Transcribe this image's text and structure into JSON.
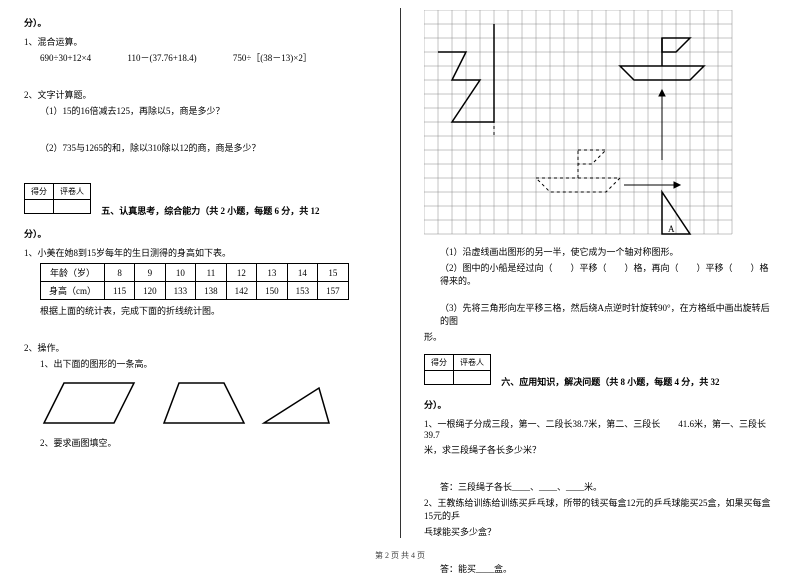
{
  "left": {
    "fen_close": "分）。",
    "q1_title": "1、混合运算。",
    "exprs": [
      "690÷30+12×4",
      "110－(37.76+18.4)",
      "750÷［(38－13)×2］"
    ],
    "q2_title": "2、文字计算题。",
    "q2_a": "（1）15的16倍减去125，再除以5，商是多少？",
    "q2_b": "（2）735与1265的和，除以310除以12的商，商是多少？",
    "score_labels": [
      "得分",
      "评卷人"
    ],
    "section5": "五、认真思考，综合能力（共 2 小题，每题 6 分，共 12",
    "q5_1": "1、小美在她8到15岁每年的生日测得的身高如下表。",
    "table": {
      "header": [
        "年龄（岁）",
        "8",
        "9",
        "10",
        "11",
        "12",
        "13",
        "14",
        "15"
      ],
      "row": [
        "身高（cm）",
        "115",
        "120",
        "133",
        "138",
        "142",
        "150",
        "153",
        "157"
      ]
    },
    "q5_1_note": "根据上面的统计表，完成下面的折线统计图。",
    "q5_2": "2、操作。",
    "q5_2_a": "1、出下面的图形的一条高。",
    "q5_2_b": "2、要求画图填空。",
    "shapes": {
      "stroke": "#000000",
      "stroke_width": 1.5,
      "fill": "none"
    }
  },
  "right": {
    "grid": {
      "cols": 22,
      "rows": 16,
      "cell": 14,
      "stroke": "#888888",
      "shape_stroke": "#000000"
    },
    "g1": "（1）沿虚线画出图形的另一半，使它成为一个轴对称图形。",
    "g2": "（2）图中的小船是经过向（　　）平移（　　）格，再向（　　）平移（　　）格得来的。",
    "g3a": "（3）先将三角形向左平移三格，然后绕A点逆时针旋转90°，在方格纸中画出旋转后的图",
    "g3b": "形。",
    "score_labels": [
      "得分",
      "评卷人"
    ],
    "section6": "六、应用知识，解决问题（共 8 小题，每题 4 分，共 32",
    "fen_close": "分）。",
    "q1a": "1、一根绳子分成三段，第一、二段长38.7米，第二、三段长　　41.6米，第一、三段长39.7",
    "q1b": "米，求三段绳子各长多少米？",
    "ans1": "答：三段绳子各长____、____、____米。",
    "q2a": "2、王教练给训练给训练买乒乓球，所带的钱买每盒12元的乒乓球能买25盒，如果买每盒15元的乒",
    "q2b": "乓球能买多少盒？",
    "ans2": "答：能买____盒。"
  },
  "footer": "第 2 页 共 4 页"
}
